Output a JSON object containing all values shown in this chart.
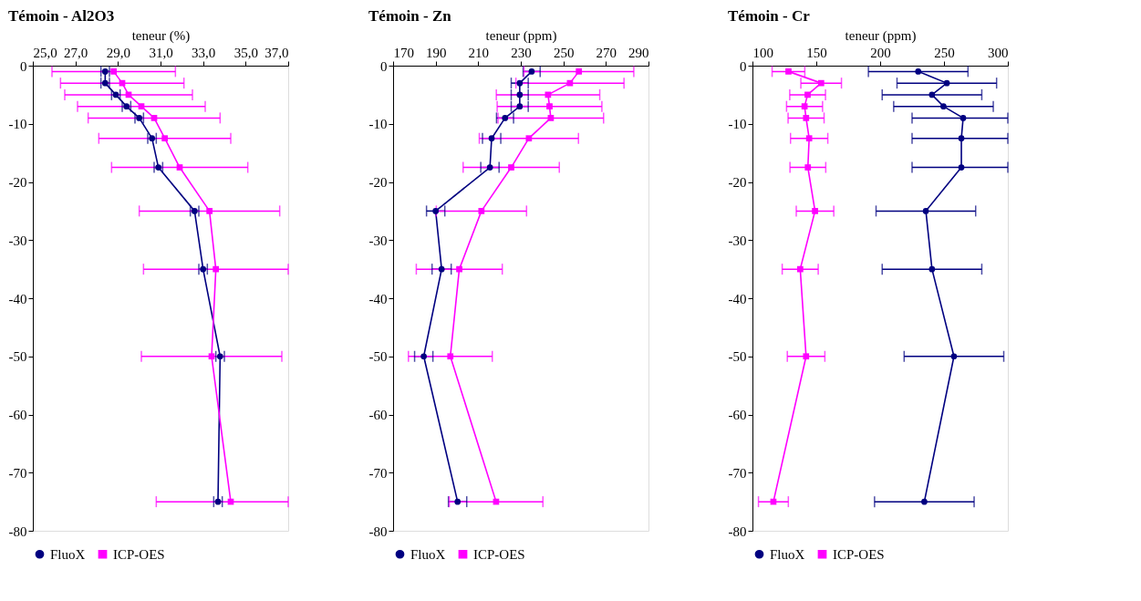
{
  "chart_data": [
    {
      "type": "line",
      "title": "Témoin - Al2O3",
      "xlabel": "teneur (%)",
      "xlim": [
        25,
        37
      ],
      "xticks": [
        {
          "value": 25,
          "label": "25,0"
        },
        {
          "value": 27,
          "label": "27,0"
        },
        {
          "value": 29,
          "label": "29,0"
        },
        {
          "value": 31,
          "label": "31,0"
        },
        {
          "value": 33,
          "label": "33,0"
        },
        {
          "value": 35,
          "label": "35,0"
        },
        {
          "value": 37,
          "label": "37,0"
        }
      ],
      "ylim": [
        -80,
        0
      ],
      "yticks": [
        0,
        -10,
        -20,
        -30,
        -40,
        -50,
        -60,
        -70,
        -80
      ],
      "grid": false,
      "legend": "bottom",
      "series": [
        {
          "name": "FluoX",
          "color": "#000080",
          "marker": "circle",
          "x": [
            28.4,
            28.4,
            28.9,
            29.4,
            30.0,
            30.6,
            30.9,
            32.6,
            33.0,
            33.8,
            33.7
          ],
          "values": [
            -1,
            -3,
            -5,
            -7,
            -9,
            -12.5,
            -17.5,
            -25,
            -35,
            -50,
            -75
          ],
          "xerrors": [
            0.2,
            0.2,
            0.2,
            0.2,
            0.2,
            0.2,
            0.2,
            0.2,
            0.2,
            0.2,
            0.2
          ]
        },
        {
          "name": "ICP-OES",
          "color": "#ff00ff",
          "marker": "square",
          "x": [
            28.8,
            29.2,
            29.5,
            30.1,
            30.7,
            31.2,
            31.9,
            33.3,
            33.6,
            33.4,
            34.3
          ],
          "values": [
            -1,
            -3,
            -5,
            -7,
            -9,
            -12.5,
            -17.5,
            -25,
            -35,
            -50,
            -75
          ],
          "xerrors": [
            2.9,
            2.9,
            3.0,
            3.0,
            3.1,
            3.1,
            3.2,
            3.3,
            3.4,
            3.3,
            [
              30.8,
              37.0
            ]
          ]
        }
      ]
    },
    {
      "type": "line",
      "title": "Témoin - Zn",
      "xlabel": "teneur (ppm)",
      "xlim": [
        170,
        290
      ],
      "xticks": [
        170,
        190,
        210,
        230,
        250,
        270,
        290
      ],
      "ylim": [
        -80,
        0
      ],
      "yticks": [
        0,
        -10,
        -20,
        -30,
        -40,
        -50,
        -60,
        -70,
        -80
      ],
      "grid": false,
      "legend": "bottom",
      "series": [
        {
          "name": "FluoX",
          "color": "#000080",
          "marker": "circle",
          "x": [
            235.1,
            229.5,
            229.5,
            229.5,
            222.6,
            216.3,
            215.5,
            190.0,
            192.8,
            184.4,
            200.3
          ],
          "values": [
            -1,
            -3,
            -5,
            -7,
            -9,
            -12.5,
            -17.5,
            -25,
            -35,
            -50,
            -75
          ],
          "xerrors": [
            4,
            4,
            4,
            4,
            4,
            4.3,
            4.3,
            4.3,
            4.5,
            4.3,
            4.3
          ]
        },
        {
          "name": "ICP-OES",
          "color": "#ff00ff",
          "marker": "square",
          "x": [
            257.3,
            253.1,
            242.8,
            243.5,
            244.1,
            233.8,
            225.5,
            211.5,
            201.1,
            196.9,
            218.4
          ],
          "values": [
            -1,
            -3,
            -5,
            -7,
            -9,
            -12.5,
            -17.5,
            -25,
            -35,
            -50,
            -75
          ],
          "xerrors": [
            25.8,
            25.4,
            24.3,
            24.6,
            24.8,
            23.3,
            22.6,
            21.2,
            20.2,
            19.7,
            22.0
          ]
        }
      ]
    },
    {
      "type": "line",
      "title": "Témoin - Cr",
      "xlabel": "teneur (ppm)",
      "xlim": [
        100,
        300
      ],
      "xticks": [
        100,
        150,
        200,
        250,
        300
      ],
      "ylim": [
        -80,
        0
      ],
      "yticks": [
        0,
        -10,
        -20,
        -30,
        -40,
        -50,
        -60,
        -70,
        -80
      ],
      "grid": false,
      "legend": "bottom",
      "series": [
        {
          "name": "FluoX",
          "color": "#000080",
          "marker": "circle",
          "x": [
            229.8,
            252.2,
            240.6,
            249.6,
            265.0,
            263.6,
            263.6,
            235.8,
            240.6,
            257.8,
            234.6
          ],
          "values": [
            -1,
            -3,
            -5,
            -7,
            -9,
            -12.5,
            -17.5,
            -25,
            -35,
            -50,
            -75
          ],
          "xerrors": [
            39,
            39,
            39,
            39,
            [
              225,
              300
            ],
            [
              225,
              300
            ],
            [
              225,
              300
            ],
            39,
            39,
            39,
            39
          ]
        },
        {
          "name": "ICP-OES",
          "color": "#ff00ff",
          "marker": "square",
          "x": [
            128.2,
            153.8,
            143.2,
            140.8,
            142.0,
            144.4,
            143.4,
            149.0,
            137.4,
            142.0,
            116.4
          ],
          "values": [
            -1,
            -3,
            -5,
            -7,
            -9,
            -12.5,
            -17.5,
            -25,
            -35,
            -50,
            -75
          ],
          "xerrors": [
            12.8,
            15.9,
            14.0,
            14.1,
            14.1,
            14.6,
            14.0,
            14.7,
            14.1,
            14.7,
            11.7
          ]
        }
      ]
    }
  ]
}
